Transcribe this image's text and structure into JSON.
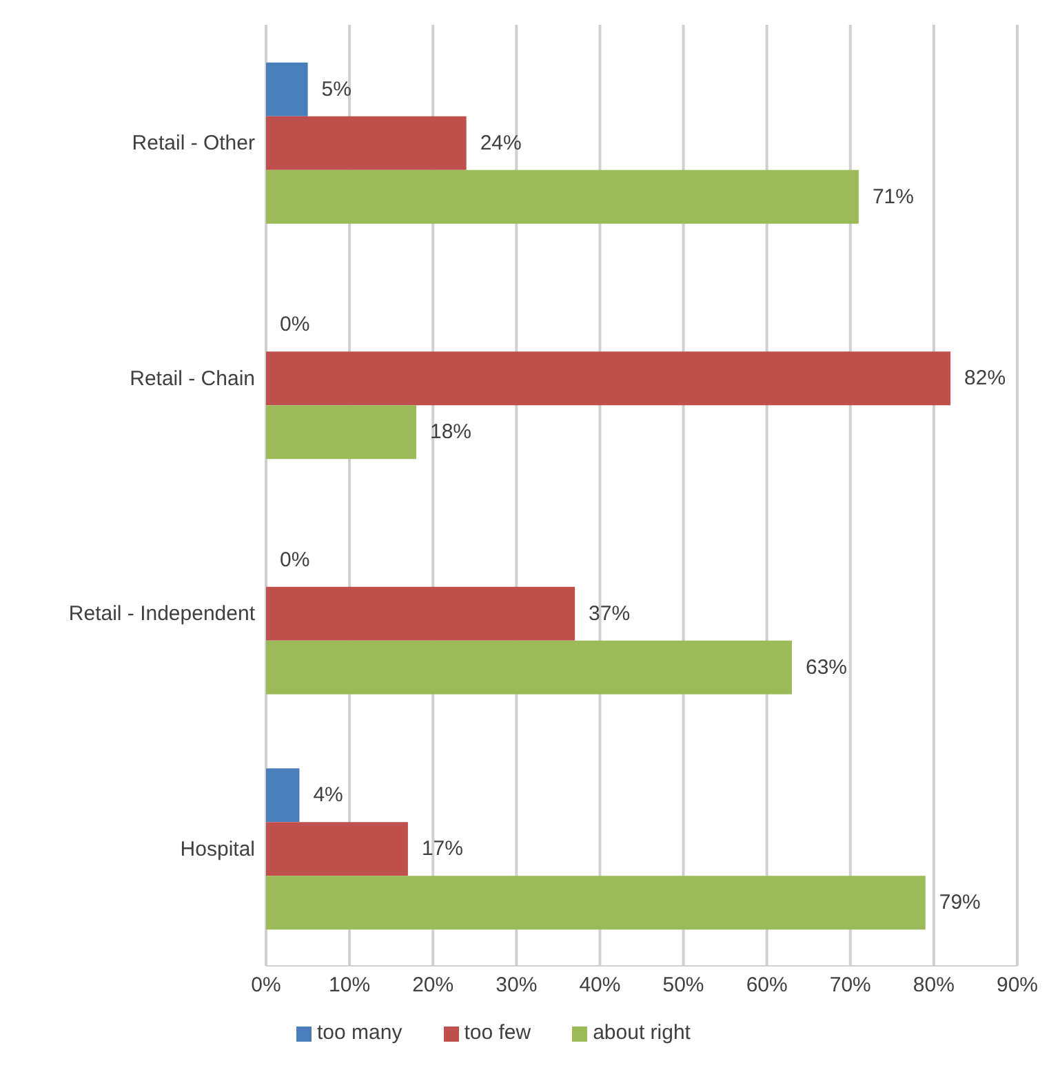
{
  "chart_data": {
    "type": "bar",
    "orientation": "horizontal",
    "categories": [
      "Retail - Other",
      "Retail - Chain",
      "Retail - Independent",
      "Hospital"
    ],
    "series": [
      {
        "name": "too many",
        "color": "#4a7ebb",
        "values": [
          5,
          0,
          0,
          4
        ],
        "value_labels": [
          "5%",
          "0%",
          "0%",
          "4%"
        ]
      },
      {
        "name": "too few",
        "color": "#c0504d",
        "values": [
          24,
          82,
          37,
          17
        ],
        "value_labels": [
          "24%",
          "82%",
          "37%",
          "17%"
        ]
      },
      {
        "name": "about right",
        "color": "#9bbb59",
        "values": [
          71,
          18,
          63,
          79
        ],
        "value_labels": [
          "71%",
          "18%",
          "63%",
          "79%"
        ]
      }
    ],
    "xlim": [
      0,
      90
    ],
    "xticks": [
      {
        "value": 0,
        "label": "0%"
      },
      {
        "value": 10,
        "label": "10%"
      },
      {
        "value": 20,
        "label": "20%"
      },
      {
        "value": 30,
        "label": "30%"
      },
      {
        "value": 40,
        "label": "40%"
      },
      {
        "value": 50,
        "label": "50%"
      },
      {
        "value": 60,
        "label": "60%"
      },
      {
        "value": 70,
        "label": "70%"
      },
      {
        "value": 80,
        "label": "80%"
      },
      {
        "value": 90,
        "label": "90%"
      }
    ],
    "grid": "x",
    "legend": "bottom"
  }
}
